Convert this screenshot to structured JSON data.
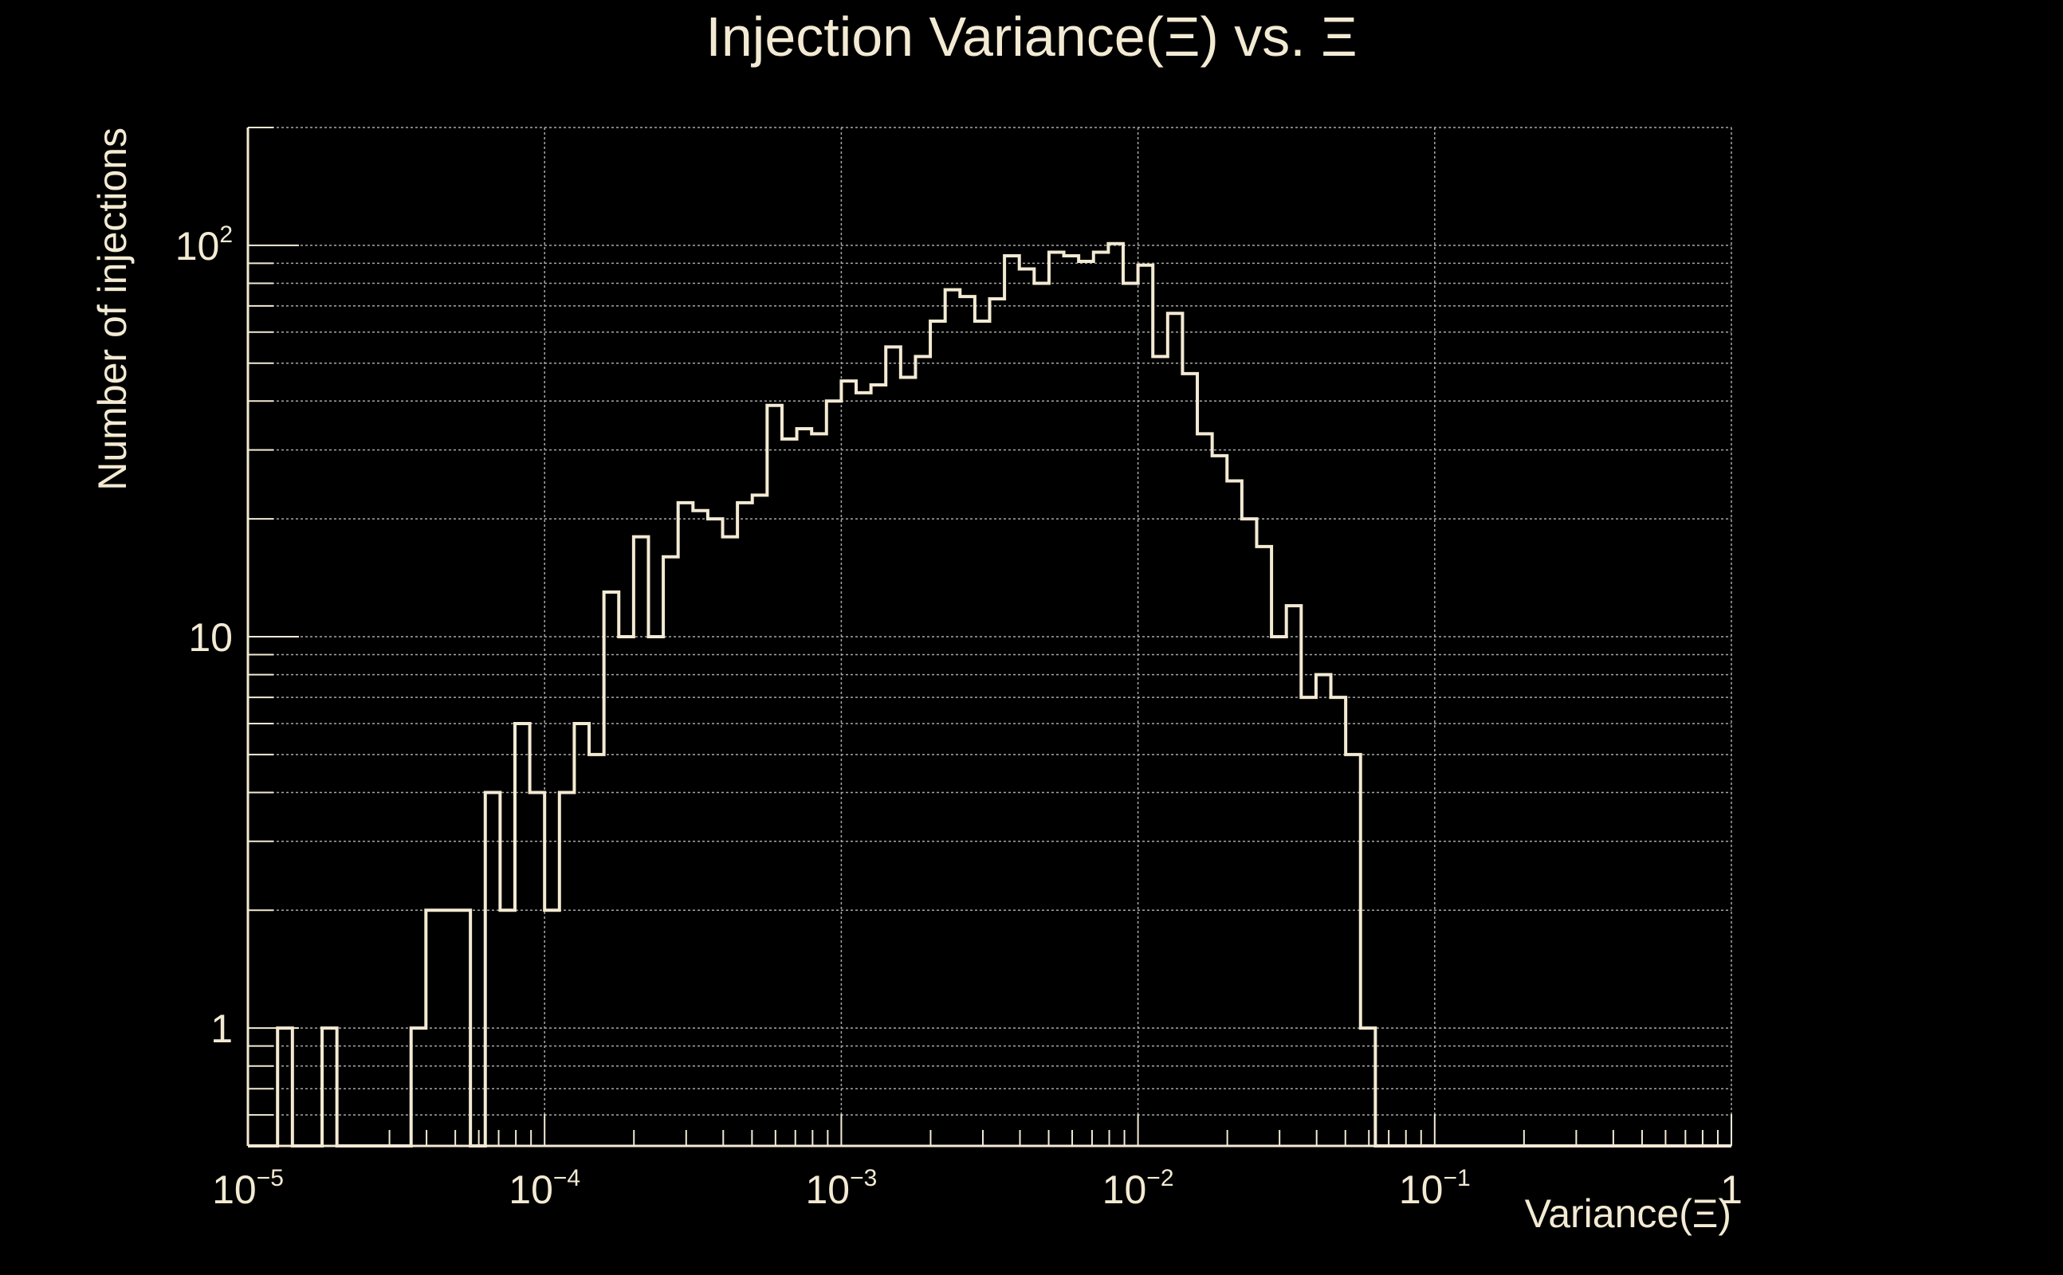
{
  "chart_data": {
    "type": "histogram",
    "title": "Injection Variance(Ξ) vs. Ξ",
    "xlabel": "Variance(Ξ)",
    "ylabel": "Number of injections",
    "x_scale": "log",
    "y_scale": "log",
    "xlim": [
      1e-05,
      1
    ],
    "ylim": [
      0.5,
      200
    ],
    "grid": true,
    "x_ticks": [
      {
        "value": 1e-05,
        "base": "10",
        "exp": "−5"
      },
      {
        "value": 0.0001,
        "base": "10",
        "exp": "−4"
      },
      {
        "value": 0.001,
        "base": "10",
        "exp": "−3"
      },
      {
        "value": 0.01,
        "base": "10",
        "exp": "−2"
      },
      {
        "value": 0.1,
        "base": "10",
        "exp": "−1"
      },
      {
        "value": 1,
        "base": "1",
        "exp": ""
      }
    ],
    "y_ticks": [
      {
        "value": 1,
        "base": "1",
        "exp": ""
      },
      {
        "value": 10,
        "base": "10",
        "exp": ""
      },
      {
        "value": 100,
        "base": "10",
        "exp": "2"
      }
    ],
    "bins_per_decade": 20,
    "bin_start": 1e-05,
    "counts": [
      0,
      0,
      1,
      0,
      0,
      1,
      0,
      0,
      0,
      0,
      0,
      1,
      2,
      2,
      2,
      0,
      4,
      2,
      6,
      4,
      2,
      4,
      6,
      5,
      13,
      10,
      18,
      10,
      16,
      22,
      21,
      20,
      18,
      22,
      23,
      39,
      32,
      34,
      33,
      40,
      45,
      42,
      44,
      55,
      46,
      52,
      64,
      77,
      74,
      64,
      73,
      94,
      87,
      80,
      96,
      94,
      91,
      96,
      101,
      80,
      89,
      52,
      67,
      47,
      33,
      29,
      25,
      20,
      17,
      10,
      12,
      7,
      8,
      7,
      5,
      1,
      0,
      0,
      0,
      0,
      0,
      0,
      0,
      0,
      0,
      0,
      0,
      0,
      0,
      0,
      0,
      0,
      0,
      0,
      0,
      0,
      0,
      0,
      0,
      0
    ],
    "colors": {
      "background": "#000000",
      "line": "#f3ead3",
      "grid": "#a8a8a8"
    }
  }
}
